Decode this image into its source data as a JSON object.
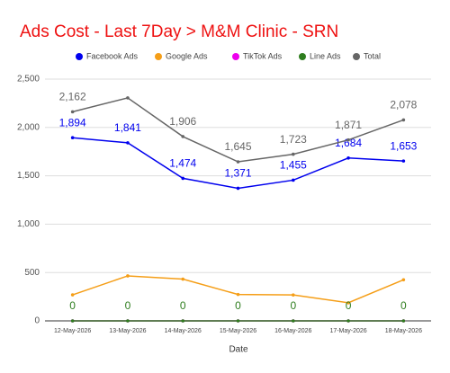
{
  "chart_data": {
    "type": "line",
    "title": "Ads Cost - Last 7Day > M&M Clinic - SRN",
    "x_label": "Date",
    "categories": [
      "12-May-2026",
      "13-May-2026",
      "14-May-2026",
      "15-May-2026",
      "16-May-2026",
      "17-May-2026",
      "18-May-2026"
    ],
    "series": [
      {
        "name": "Facebook Ads",
        "color": "#0000ee",
        "values": [
          1894,
          1841,
          1474,
          1371,
          1455,
          1684,
          1653
        ],
        "value_labels": [
          "1,894",
          "1,841",
          "1,474",
          "1,371",
          "1,455",
          "1,684",
          "1,653"
        ]
      },
      {
        "name": "Google Ads",
        "color": "#f59e17",
        "values": [
          269,
          465,
          432,
          273,
          268,
          187,
          425
        ]
      },
      {
        "name": "TikTok Ads",
        "color": "#ee00ee",
        "values": [
          0,
          0,
          0,
          0,
          0,
          0,
          0
        ]
      },
      {
        "name": "Line Ads",
        "color": "#2e7d1e",
        "values": [
          0,
          0,
          0,
          0,
          0,
          0,
          0
        ],
        "show_labels": true
      },
      {
        "name": "Total",
        "color": "#666666",
        "values": [
          2162,
          2306,
          1906,
          1645,
          1723,
          1871,
          2078
        ],
        "value_labels": [
          "2,162",
          null,
          "1,906",
          "1,645",
          "1,723",
          "1,871",
          "2,078"
        ]
      }
    ],
    "ylim": [
      0,
      2500
    ],
    "yticks": [
      0,
      500,
      {
        "value": 1000,
        "label": "1,000"
      },
      {
        "value": 1500,
        "label": "1,500"
      },
      {
        "value": 2000,
        "label": "2,000"
      },
      {
        "value": 2500,
        "label": "2,500"
      }
    ],
    "grid": true
  }
}
